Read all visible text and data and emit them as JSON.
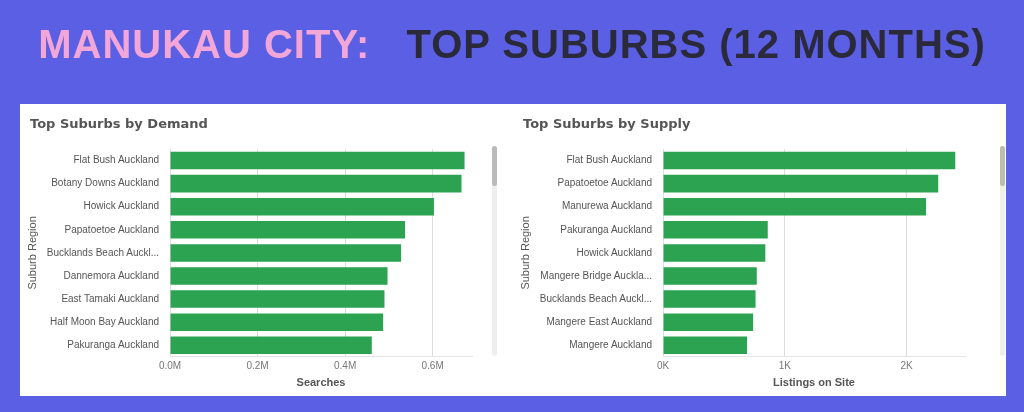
{
  "chart_data": [
    {
      "type": "other",
      "annotations": [
        "MANUKAU CITY:",
        "TOP SUBURBS (12 MONTHS)"
      ]
    },
    {
      "type": "bar",
      "orientation": "horizontal",
      "title": "Top Suburbs by Demand",
      "xlabel": "Searches",
      "ylabel": "Suburb Region",
      "categories": [
        "Flat Bush Auckland",
        "Botany Downs Auckland",
        "Howick Auckland",
        "Papatoetoe Auckland",
        "Bucklands Beach Auckl...",
        "Dannemora Auckland",
        "East Tamaki Auckland",
        "Half Moon Bay Auckland",
        "Pakuranga Auckland"
      ],
      "values": [
        673000,
        666000,
        603000,
        537000,
        528000,
        497000,
        490000,
        487000,
        461000
      ],
      "color": "#2ba350",
      "xlim": [
        0,
        690000
      ],
      "xticks": [
        {
          "value": 0,
          "label": "0.0M"
        },
        {
          "value": 200000,
          "label": "0.2M"
        },
        {
          "value": 400000,
          "label": "0.4M"
        },
        {
          "value": 600000,
          "label": "0.6M"
        }
      ],
      "grid": "x",
      "legend": false
    },
    {
      "type": "bar",
      "orientation": "horizontal",
      "title": "Top Suburbs by Supply",
      "xlabel": "Listings on Site",
      "ylabel": "Suburb Region",
      "categories": [
        "Flat Bush Auckland",
        "Papatoetoe Auckland",
        "Manurewa Auckland",
        "Pakuranga Auckland",
        "Howick Auckland",
        "Mangere Bridge Auckla...",
        "Bucklands Beach Auckl...",
        "Mangere East Auckland",
        "Mangere Auckland"
      ],
      "values": [
        2400,
        2260,
        2160,
        860,
        840,
        770,
        760,
        740,
        690
      ],
      "color": "#2ba350",
      "xlim": [
        0,
        2480
      ],
      "xticks": [
        {
          "value": 0,
          "label": "0K"
        },
        {
          "value": 1000,
          "label": "1K"
        },
        {
          "value": 2000,
          "label": "2K"
        }
      ],
      "grid": "x",
      "legend": false
    }
  ]
}
